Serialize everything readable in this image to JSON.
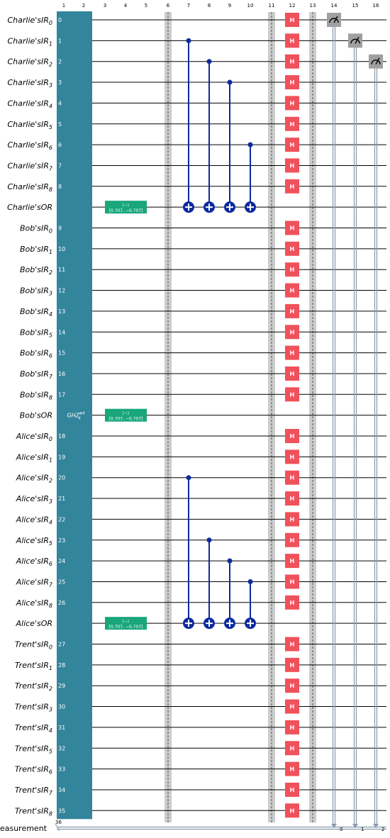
{
  "column_numbers": [
    "1",
    "2",
    "3",
    "4",
    "5",
    "6",
    "7",
    "8",
    "9",
    "10",
    "11",
    "12",
    "13",
    "14",
    "15",
    "16"
  ],
  "qubits": [
    {
      "base": "Charlie'sIR",
      "sub": "0",
      "index": "0"
    },
    {
      "base": "Charlie'sIR",
      "sub": "1",
      "index": "1"
    },
    {
      "base": "Charlie'sIR",
      "sub": "2",
      "index": "2"
    },
    {
      "base": "Charlie'sIR",
      "sub": "3",
      "index": "3"
    },
    {
      "base": "Charlie'sIR",
      "sub": "4",
      "index": "4"
    },
    {
      "base": "Charlie'sIR",
      "sub": "5",
      "index": "5"
    },
    {
      "base": "Charlie'sIR",
      "sub": "6",
      "index": "6"
    },
    {
      "base": "Charlie'sIR",
      "sub": "7",
      "index": "7"
    },
    {
      "base": "Charlie'sIR",
      "sub": "8",
      "index": "8"
    },
    {
      "base": "Charlie'sOR",
      "sub": "",
      "index": ""
    },
    {
      "base": "Bob'sIR",
      "sub": "0",
      "index": "9"
    },
    {
      "base": "Bob'sIR",
      "sub": "1",
      "index": "10"
    },
    {
      "base": "Bob'sIR",
      "sub": "2",
      "index": "11"
    },
    {
      "base": "Bob'sIR",
      "sub": "3",
      "index": "12"
    },
    {
      "base": "Bob'sIR",
      "sub": "4",
      "index": "13"
    },
    {
      "base": "Bob'sIR",
      "sub": "5",
      "index": "14"
    },
    {
      "base": "Bob'sIR",
      "sub": "6",
      "index": "15"
    },
    {
      "base": "Bob'sIR",
      "sub": "7",
      "index": "16"
    },
    {
      "base": "Bob'sIR",
      "sub": "8",
      "index": "17"
    },
    {
      "base": "Bob'sOR",
      "sub": "",
      "index": ""
    },
    {
      "base": "Alice'sIR",
      "sub": "0",
      "index": "18"
    },
    {
      "base": "Alice'sIR",
      "sub": "1",
      "index": "19"
    },
    {
      "base": "Alice'sIR",
      "sub": "2",
      "index": "20"
    },
    {
      "base": "Alice'sIR",
      "sub": "3",
      "index": "21"
    },
    {
      "base": "Alice'sIR",
      "sub": "4",
      "index": "22"
    },
    {
      "base": "Alice'sIR",
      "sub": "5",
      "index": "23"
    },
    {
      "base": "Alice'sIR",
      "sub": "6",
      "index": "24"
    },
    {
      "base": "Alice'sIR",
      "sub": "7",
      "index": "25"
    },
    {
      "base": "Alice'sIR",
      "sub": "8",
      "index": "26"
    },
    {
      "base": "Alice'sOR",
      "sub": "",
      "index": ""
    },
    {
      "base": "Trent'sIR",
      "sub": "0",
      "index": "27"
    },
    {
      "base": "Trent'sIR",
      "sub": "1",
      "index": "28"
    },
    {
      "base": "Trent'sIR",
      "sub": "2",
      "index": "29"
    },
    {
      "base": "Trent'sIR",
      "sub": "3",
      "index": "30"
    },
    {
      "base": "Trent'sIR",
      "sub": "4",
      "index": "31"
    },
    {
      "base": "Trent'sIR",
      "sub": "5",
      "index": "32"
    },
    {
      "base": "Trent'sIR",
      "sub": "6",
      "index": "33"
    },
    {
      "base": "Trent'sIR",
      "sub": "7",
      "index": "34"
    },
    {
      "base": "Trent'sIR",
      "sub": "8",
      "index": "35"
    }
  ],
  "classical_register": {
    "label": "Measurement",
    "bits": "36",
    "bit_labels": [
      "0",
      "1",
      "2"
    ]
  },
  "ghz_gate": {
    "label": "GHZ",
    "sup": "⊗9",
    "sub": "4",
    "color": "#33859b"
  },
  "init_gates": [
    {
      "line1": "|−⟩",
      "line2": "[0.707, −0.707]",
      "target": "Charlie'sOR"
    },
    {
      "line1": "|−⟩",
      "line2": "[0.707, −0.707]",
      "target": "Bob'sOR"
    },
    {
      "line1": "|−⟩",
      "line2": "[0.707, −0.707]",
      "target": "Alice'sOR"
    }
  ],
  "h_gate": {
    "label": "H",
    "color": "#f0515a"
  },
  "colors": {
    "ghz": "#33859b",
    "init": "#18a67a",
    "h": "#f0515a",
    "cnot": "#0d2a9e",
    "measure": "#a0a0a0",
    "barrier": "#cccccc",
    "classical": "#8899aa"
  }
}
